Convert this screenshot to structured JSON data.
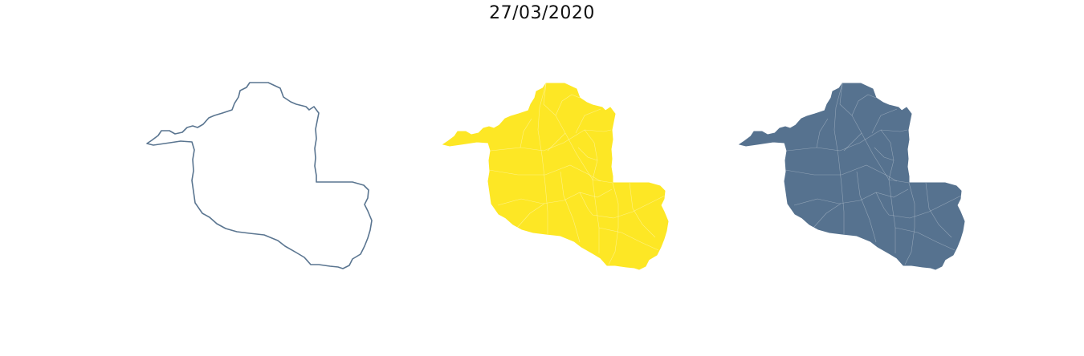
{
  "figure": {
    "title": "27/03/2020"
  },
  "panels": [
    {
      "name": "outline",
      "fill": "none",
      "stroke": "#5a7590",
      "districts": false
    },
    {
      "name": "yellow",
      "fill": "#fde725",
      "stroke": "#fde725",
      "districts": true
    },
    {
      "name": "slate",
      "fill": "#56728f",
      "stroke": "#56728f",
      "districts": true
    }
  ],
  "colors": {
    "district_line": "#ffffff"
  }
}
